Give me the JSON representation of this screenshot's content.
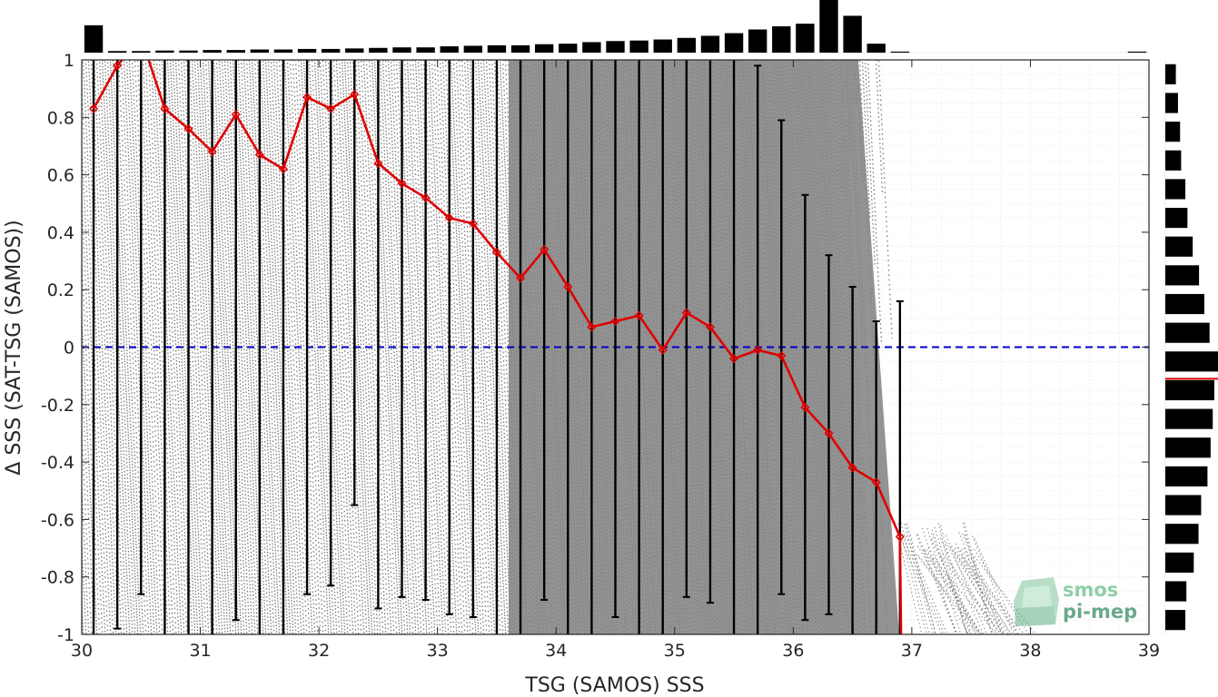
{
  "chart_data": {
    "type": "scatter",
    "xlabel": "TSG (SAMOS) SSS",
    "ylabel": "Δ SSS (SAT-TSG (SAMOS))",
    "xlim": [
      30,
      39
    ],
    "ylim": [
      -1,
      1
    ],
    "x_ticks": [
      "30",
      "31",
      "32",
      "33",
      "34",
      "35",
      "36",
      "37",
      "38",
      "39"
    ],
    "y_ticks": [
      "1",
      "0.8",
      "0.6",
      "0.4",
      "0.2",
      "0",
      "-0.2",
      "-0.4",
      "-0.6",
      "-0.8",
      "-1"
    ],
    "grid": true,
    "zero_line": {
      "y": 0,
      "style": "dashed",
      "color": "#0000cc"
    },
    "scatter_color": "#808080",
    "mean_line_color": "#e00000",
    "errorbar_color": "#000000",
    "binned": {
      "x": [
        30.1,
        30.3,
        30.5,
        30.7,
        30.9,
        31.1,
        31.3,
        31.5,
        31.7,
        31.9,
        32.1,
        32.3,
        32.5,
        32.7,
        32.9,
        33.1,
        33.3,
        33.5,
        33.7,
        33.9,
        34.1,
        34.3,
        34.5,
        34.7,
        34.9,
        35.1,
        35.3,
        35.5,
        35.7,
        35.9,
        36.1,
        36.3,
        36.5,
        36.7,
        36.9
      ],
      "mean": [
        0.83,
        0.98,
        1.08,
        0.83,
        0.76,
        0.68,
        0.81,
        0.67,
        0.62,
        0.87,
        0.83,
        0.88,
        0.64,
        0.57,
        0.52,
        0.45,
        0.43,
        0.33,
        0.24,
        0.34,
        0.21,
        0.07,
        0.09,
        0.11,
        -0.01,
        0.12,
        0.07,
        -0.04,
        -0.01,
        -0.03,
        -0.21,
        -0.3,
        -0.42,
        -0.47,
        -0.66
      ],
      "lower": [
        -1.0,
        -0.98,
        -0.86,
        -1.0,
        -1.0,
        -1.0,
        -0.95,
        -1.0,
        -1.0,
        -0.86,
        -0.83,
        -0.55,
        -0.91,
        -0.87,
        -0.88,
        -0.93,
        -0.94,
        -1.0,
        -1.0,
        -0.88,
        -1.0,
        -1.0,
        -0.94,
        -1.0,
        -1.0,
        -0.87,
        -0.89,
        -1.0,
        -1.0,
        -0.86,
        -0.95,
        -0.93,
        -1.0,
        -1.0,
        -1.0
      ],
      "upper": [
        1.0,
        1.0,
        1.0,
        1.0,
        1.0,
        1.0,
        1.0,
        1.0,
        1.0,
        1.0,
        1.0,
        1.0,
        1.0,
        1.0,
        1.0,
        1.0,
        1.0,
        1.0,
        1.0,
        1.0,
        1.0,
        1.0,
        1.0,
        1.0,
        1.0,
        1.0,
        1.0,
        1.0,
        0.98,
        0.79,
        0.53,
        0.32,
        0.21,
        0.09,
        0.16
      ]
    },
    "top_histogram": {
      "x": [
        30.1,
        30.3,
        30.5,
        30.7,
        30.9,
        31.1,
        31.3,
        31.5,
        31.7,
        31.9,
        32.1,
        32.3,
        32.5,
        32.7,
        32.9,
        33.1,
        33.3,
        33.5,
        33.7,
        33.9,
        34.1,
        34.3,
        34.5,
        34.7,
        34.9,
        35.1,
        35.3,
        35.5,
        35.7,
        35.9,
        36.1,
        36.3,
        36.5,
        36.7,
        36.9,
        38.9
      ],
      "counts": [
        0.52,
        0.03,
        0.03,
        0.04,
        0.04,
        0.05,
        0.05,
        0.06,
        0.06,
        0.07,
        0.07,
        0.08,
        0.09,
        0.1,
        0.1,
        0.12,
        0.13,
        0.14,
        0.14,
        0.16,
        0.17,
        0.2,
        0.22,
        0.23,
        0.25,
        0.28,
        0.32,
        0.37,
        0.44,
        0.5,
        0.55,
        1.0,
        0.7,
        0.17,
        0.02,
        0.02
      ]
    },
    "right_histogram": {
      "y": [
        0.95,
        0.85,
        0.75,
        0.65,
        0.55,
        0.45,
        0.35,
        0.25,
        0.15,
        0.05,
        -0.05,
        -0.15,
        -0.25,
        -0.35,
        -0.45,
        -0.55,
        -0.65,
        -0.75,
        -0.85,
        -0.95
      ],
      "counts": [
        0.2,
        0.24,
        0.28,
        0.3,
        0.38,
        0.42,
        0.52,
        0.64,
        0.74,
        0.84,
        1.0,
        0.93,
        0.9,
        0.86,
        0.8,
        0.68,
        0.63,
        0.54,
        0.4,
        0.38
      ],
      "mean": -0.11
    }
  },
  "logo": {
    "line1": "smos",
    "line2": "pi-mep"
  }
}
